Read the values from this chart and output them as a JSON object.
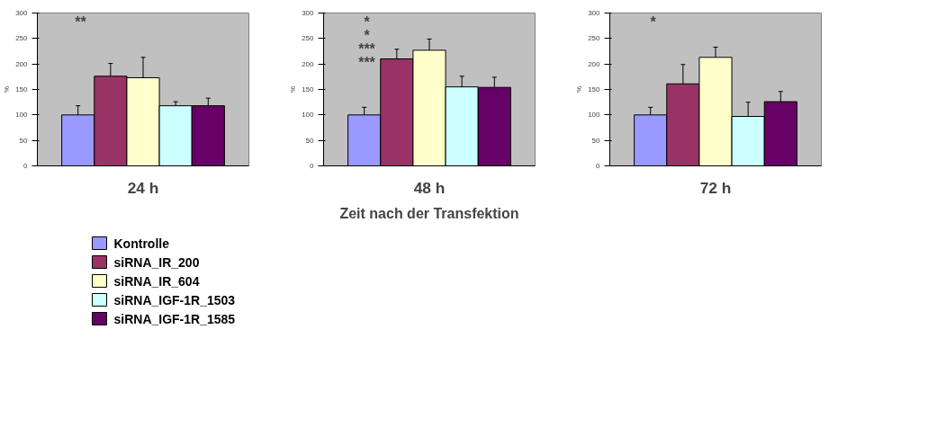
{
  "chart_data": [
    {
      "type": "bar",
      "xlabel": "24 h",
      "ylabel": "%",
      "categories": [
        null
      ],
      "ylim": [
        0,
        300
      ],
      "yticks": [
        0,
        50,
        100,
        150,
        200,
        250,
        300
      ],
      "tick_labels": "y",
      "legend": "bottom",
      "series": [
        {
          "name": "Kontrolle",
          "color": "#9999ff",
          "values": [
            100
          ],
          "errors": [
            18
          ]
        },
        {
          "name": "siRNA_IR_200",
          "color": "#993366",
          "values": [
            176
          ],
          "errors": [
            25
          ]
        },
        {
          "name": "siRNA_IR_604",
          "color": "#ffffcc",
          "values": [
            173
          ],
          "errors": [
            40
          ]
        },
        {
          "name": "siRNA_IGF-1R_1503",
          "color": "#ccffff",
          "values": [
            118
          ],
          "errors": [
            8
          ]
        },
        {
          "name": "siRNA_IGF-1R_1585",
          "color": "#660066",
          "values": [
            118
          ],
          "errors": [
            15
          ]
        }
      ],
      "annotations": [
        "**"
      ]
    },
    {
      "type": "bar",
      "xlabel": "48 h",
      "ylabel": "%",
      "categories": [
        null
      ],
      "ylim": [
        0,
        300
      ],
      "yticks": [
        0,
        50,
        100,
        150,
        200,
        250,
        300
      ],
      "tick_labels": "y",
      "series": [
        {
          "color": "#9999ff",
          "values": [
            100
          ],
          "errors": [
            15
          ]
        },
        {
          "color": "#993366",
          "values": [
            210
          ],
          "errors": [
            19
          ]
        },
        {
          "color": "#ffffcc",
          "values": [
            227
          ],
          "errors": [
            22
          ]
        },
        {
          "color": "#ccffff",
          "values": [
            155
          ],
          "errors": [
            21
          ]
        },
        {
          "color": "#660066",
          "values": [
            154
          ],
          "errors": [
            20
          ]
        }
      ],
      "annotations": [
        "*",
        "*",
        "***",
        "***",
        "Zeit nach der Transfektion"
      ]
    },
    {
      "type": "bar",
      "xlabel": "72 h",
      "ylabel": "%",
      "categories": [
        null
      ],
      "ylim": [
        0,
        300
      ],
      "yticks": [
        0,
        50,
        100,
        150,
        200,
        250,
        300
      ],
      "tick_labels": "y",
      "series": [
        {
          "color": "#9999ff",
          "values": [
            100
          ],
          "errors": [
            15
          ]
        },
        {
          "color": "#993366",
          "values": [
            161
          ],
          "errors": [
            38
          ]
        },
        {
          "color": "#ffffcc",
          "values": [
            213
          ],
          "errors": [
            20
          ]
        },
        {
          "color": "#ccffff",
          "values": [
            97
          ],
          "errors": [
            28
          ]
        },
        {
          "color": "#660066",
          "values": [
            126
          ],
          "errors": [
            20
          ]
        }
      ],
      "annotations": [
        "*"
      ]
    }
  ]
}
